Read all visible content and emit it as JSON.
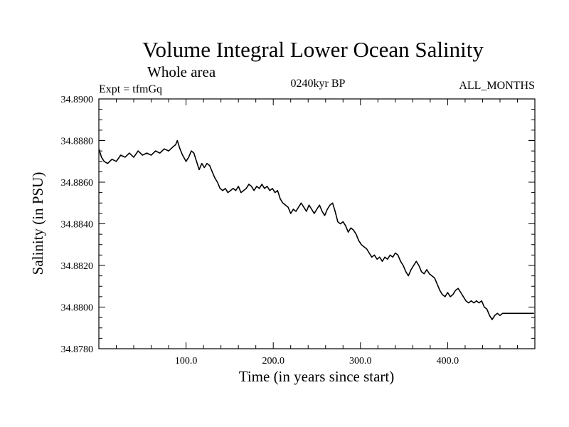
{
  "chart_data": {
    "type": "line",
    "title": "Volume Integral Lower Ocean Salinity",
    "subtitle": "Whole area",
    "left_label": "Expt = tfmGq",
    "center_label": "0240kyr BP",
    "right_label": "ALL_MONTHS",
    "xlabel": "Time (in years since start)",
    "ylabel": "Salinity (in PSU)",
    "xlim": [
      0,
      500
    ],
    "ylim": [
      34.878,
      34.89
    ],
    "x_ticks": [
      100,
      200,
      300,
      400
    ],
    "x_tick_labels": [
      "100.0",
      "200.0",
      "300.0",
      "400.0"
    ],
    "y_ticks": [
      34.878,
      34.88,
      34.882,
      34.884,
      34.886,
      34.888,
      34.89
    ],
    "y_tick_labels": [
      "34.8780",
      "34.8800",
      "34.8820",
      "34.8840",
      "34.8860",
      "34.8880",
      "34.8900"
    ],
    "grid": false,
    "series": [
      {
        "color": "#000000",
        "x": [
          0,
          3,
          6,
          10,
          15,
          20,
          25,
          30,
          35,
          40,
          45,
          50,
          55,
          60,
          65,
          70,
          75,
          80,
          85,
          88,
          90,
          93,
          96,
          100,
          103,
          106,
          109,
          112,
          115,
          118,
          121,
          124,
          127,
          130,
          133,
          136,
          139,
          142,
          145,
          148,
          151,
          154,
          157,
          160,
          163,
          166,
          169,
          172,
          175,
          178,
          181,
          184,
          187,
          190,
          193,
          196,
          199,
          202,
          205,
          208,
          211,
          214,
          217,
          220,
          223,
          226,
          229,
          232,
          235,
          238,
          241,
          244,
          247,
          250,
          253,
          256,
          259,
          262,
          265,
          268,
          271,
          274,
          277,
          280,
          283,
          286,
          289,
          292,
          295,
          298,
          301,
          304,
          307,
          310,
          313,
          316,
          319,
          322,
          325,
          328,
          331,
          334,
          337,
          340,
          343,
          346,
          349,
          352,
          355,
          358,
          361,
          364,
          367,
          370,
          373,
          376,
          379,
          382,
          385,
          388,
          391,
          394,
          397,
          400,
          403,
          406,
          409,
          412,
          415,
          418,
          421,
          424,
          427,
          430,
          433,
          436,
          439,
          442,
          445,
          448,
          451,
          454,
          457,
          460,
          463,
          466,
          469,
          472,
          475,
          478,
          481,
          484,
          487,
          490,
          493,
          496,
          499
        ],
        "values": [
          34.8876,
          34.8872,
          34.887,
          34.8869,
          34.8871,
          34.887,
          34.8873,
          34.8872,
          34.8874,
          34.8872,
          34.8875,
          34.8873,
          34.8874,
          34.8873,
          34.8875,
          34.8874,
          34.8876,
          34.8875,
          34.8877,
          34.8878,
          34.888,
          34.8876,
          34.8873,
          34.887,
          34.8872,
          34.8875,
          34.8874,
          34.887,
          34.8866,
          34.8869,
          34.8867,
          34.8869,
          34.8868,
          34.8865,
          34.8862,
          34.886,
          34.8857,
          34.8856,
          34.8857,
          34.8855,
          34.8856,
          34.8857,
          34.8856,
          34.8858,
          34.8855,
          34.8856,
          34.8857,
          34.8859,
          34.8858,
          34.8856,
          34.8858,
          34.8857,
          34.8859,
          34.8857,
          34.8858,
          34.8856,
          34.8857,
          34.8855,
          34.8856,
          34.8852,
          34.885,
          34.8849,
          34.8848,
          34.8845,
          34.8847,
          34.8846,
          34.8848,
          34.885,
          34.8848,
          34.8846,
          34.8849,
          34.8847,
          34.8845,
          34.8847,
          34.8849,
          34.8846,
          34.8844,
          34.8847,
          34.8849,
          34.885,
          34.8846,
          34.8841,
          34.884,
          34.8841,
          34.8839,
          34.8836,
          34.8838,
          34.8837,
          34.8835,
          34.8832,
          34.883,
          34.8829,
          34.8828,
          34.8826,
          34.8824,
          34.8825,
          34.8823,
          34.8824,
          34.8822,
          34.8824,
          34.8823,
          34.8825,
          34.8824,
          34.8826,
          34.8825,
          34.8822,
          34.882,
          34.8817,
          34.8815,
          34.8818,
          34.882,
          34.8822,
          34.882,
          34.8817,
          34.8816,
          34.8818,
          34.8816,
          34.8815,
          34.8814,
          34.8811,
          34.8808,
          34.8806,
          34.8805,
          34.8807,
          34.8805,
          34.8806,
          34.8808,
          34.8809,
          34.8807,
          34.8805,
          34.8803,
          34.8802,
          34.8803,
          34.8802,
          34.8803,
          34.8802,
          34.8803,
          34.88,
          34.8799,
          34.8796,
          34.8794,
          34.8796,
          34.8797,
          34.8796,
          34.8797,
          34.8797,
          34.8797,
          34.8797,
          34.8797,
          34.8797,
          34.8797,
          34.8797,
          34.8797,
          34.8797,
          34.8797,
          34.8797,
          34.8797
        ]
      }
    ]
  }
}
